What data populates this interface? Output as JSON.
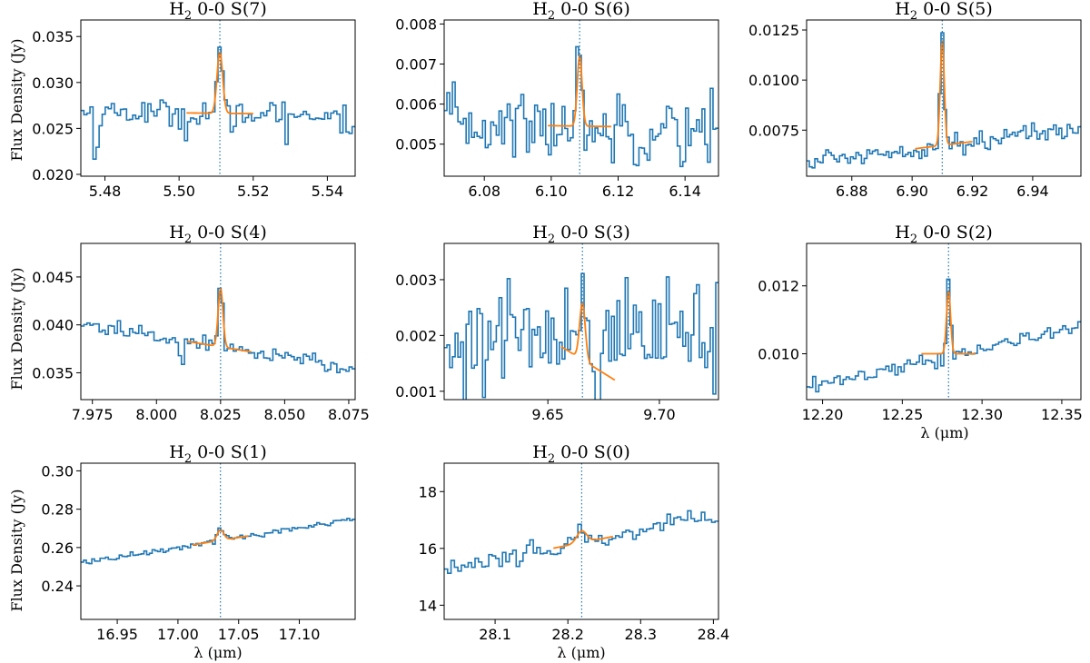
{
  "figure": {
    "ylabel": "Flux Density (Jy)",
    "xlabel": "λ (μm)",
    "title_prefix": "H",
    "title_subscript": "2",
    "colors": {
      "data": "#1f77b4",
      "fit": "#ff7f0e",
      "line_center": "#1f77b4"
    }
  },
  "chart_data": [
    {
      "type": "line",
      "title": "H2 0-0 S(7)",
      "line_label": "0-0 S(7)",
      "xlim": [
        5.4735,
        5.5475
      ],
      "ylim": [
        0.0198,
        0.0368
      ],
      "xticks": [
        5.48,
        5.5,
        5.52,
        5.54
      ],
      "xtick_labels": [
        "5.48",
        "5.50",
        "5.52",
        "5.54"
      ],
      "yticks": [
        0.02,
        0.025,
        0.03,
        0.035
      ],
      "ytick_labels": [
        "0.020",
        "0.025",
        "0.030",
        "0.035"
      ],
      "center": 5.511,
      "fwhm": 0.0018,
      "noise": 0.0007,
      "continuum": [
        [
          5.4735,
          0.0268
        ],
        [
          5.5475,
          0.0265
        ]
      ],
      "peak": 0.0072,
      "fit_range": [
        5.502,
        5.52
      ],
      "nbins": 90,
      "dips": [
        [
          5.4775,
          -0.004
        ],
        [
          5.502,
          -0.0035
        ],
        [
          5.5145,
          -0.0025
        ],
        [
          5.529,
          -0.0022
        ],
        [
          5.5465,
          -0.0022
        ]
      ]
    },
    {
      "type": "line",
      "title": "H2 0-0 S(6)",
      "line_label": "0-0 S(6)",
      "xlim": [
        6.068,
        6.15
      ],
      "ylim": [
        0.0042,
        0.0081
      ],
      "xticks": [
        6.08,
        6.1,
        6.12,
        6.14
      ],
      "xtick_labels": [
        "6.08",
        "6.10",
        "6.12",
        "6.14"
      ],
      "yticks": [
        0.005,
        0.006,
        0.007,
        0.008
      ],
      "ytick_labels": [
        "0.005",
        "0.006",
        "0.007",
        "0.008"
      ],
      "center": 6.1085,
      "fwhm": 0.0017,
      "noise": 0.00045,
      "continuum": [
        [
          6.068,
          0.0055
        ],
        [
          6.15,
          0.0054
        ]
      ],
      "peak": 0.0019,
      "fit_range": [
        6.099,
        6.118
      ],
      "nbins": 100,
      "dips": []
    },
    {
      "type": "line",
      "title": "H2 0-0 S(5)",
      "line_label": "0-0 S(5)",
      "xlim": [
        6.865,
        6.956
      ],
      "ylim": [
        0.0052,
        0.013
      ],
      "xticks": [
        6.88,
        6.9,
        6.92,
        6.94
      ],
      "xtick_labels": [
        "6.88",
        "6.90",
        "6.92",
        "6.94"
      ],
      "yticks": [
        0.0075,
        0.01,
        0.0125
      ],
      "ytick_labels": [
        "0.0075",
        "0.0100",
        "0.0125"
      ],
      "center": 6.91,
      "fwhm": 0.0016,
      "noise": 0.00025,
      "continuum": [
        [
          6.865,
          0.0059
        ],
        [
          6.956,
          0.0076
        ]
      ],
      "peak": 0.0056,
      "fit_range": [
        6.901,
        6.92
      ],
      "nbins": 100,
      "dips": []
    },
    {
      "type": "line",
      "title": "H2 0-0 S(4)",
      "line_label": "0-0 S(4)",
      "xlim": [
        7.9705,
        8.0775
      ],
      "ylim": [
        0.0322,
        0.0485
      ],
      "xticks": [
        7.975,
        8.0,
        8.025,
        8.05,
        8.075
      ],
      "xtick_labels": [
        "7.975",
        "8.000",
        "8.025",
        "8.050",
        "8.075"
      ],
      "yticks": [
        0.035,
        0.04,
        0.045
      ],
      "ytick_labels": [
        "0.035",
        "0.040",
        "0.045"
      ],
      "center": 8.025,
      "fwhm": 0.0022,
      "noise": 0.0004,
      "continuum": [
        [
          7.9705,
          0.0401
        ],
        [
          8.0775,
          0.0354
        ]
      ],
      "peak": 0.0066,
      "fit_range": [
        8.012,
        8.037
      ],
      "nbins": 90,
      "dips": [
        [
          8.01,
          -0.002
        ]
      ]
    },
    {
      "type": "line",
      "title": "H2 0-0 S(3)",
      "line_label": "0-0 S(3)",
      "xlim": [
        9.6035,
        9.7265
      ],
      "ylim": [
        0.00085,
        0.00365
      ],
      "xticks": [
        9.65,
        9.7
      ],
      "xtick_labels": [
        "9.65",
        "9.70"
      ],
      "yticks": [
        0.001,
        0.002,
        0.003
      ],
      "ytick_labels": [
        "0.001",
        "0.002",
        "0.003"
      ],
      "center": 9.6655,
      "fwhm": 0.003,
      "noise": 0.0005,
      "continuum": [
        [
          9.6035,
          0.002
        ],
        [
          9.7265,
          0.002
        ]
      ],
      "peak": 0.0011,
      "fit_range": [
        9.656,
        9.68
      ],
      "nbins": 100,
      "dips": [
        [
          9.6135,
          -0.0008
        ],
        [
          9.6725,
          -0.0008
        ]
      ],
      "fit_continuum": [
        [
          9.656,
          0.0018
        ],
        [
          9.68,
          0.0012
        ]
      ]
    },
    {
      "type": "line",
      "title": "H2 0-0 S(2)",
      "line_label": "0-0 S(2)",
      "xlim": [
        12.19,
        12.362
      ],
      "ylim": [
        0.00865,
        0.01325
      ],
      "xticks": [
        12.2,
        12.25,
        12.3,
        12.35
      ],
      "xtick_labels": [
        "12.20",
        "12.25",
        "12.30",
        "12.35"
      ],
      "yticks": [
        0.01,
        0.012
      ],
      "ytick_labels": [
        "0.010",
        "0.012"
      ],
      "center": 12.279,
      "fwhm": 0.003,
      "noise": 0.00012,
      "continuum": [
        [
          12.19,
          0.009
        ],
        [
          12.362,
          0.0108
        ]
      ],
      "peak": 0.002,
      "fit_range": [
        12.262,
        12.296
      ],
      "nbins": 90,
      "dips": [],
      "fit_continuum": [
        [
          12.262,
          0.01
        ],
        [
          12.296,
          0.01
        ]
      ]
    },
    {
      "type": "line",
      "title": "H2 0-0 S(1)",
      "line_label": "0-0 S(1)",
      "xlim": [
        16.92,
        17.146
      ],
      "ylim": [
        0.2225,
        0.304
      ],
      "xticks": [
        16.95,
        17.0,
        17.05,
        17.1
      ],
      "xtick_labels": [
        "16.95",
        "17.00",
        "17.05",
        "17.10"
      ],
      "yticks": [
        0.24,
        0.26,
        0.28,
        0.3
      ],
      "ytick_labels": [
        "0.24",
        "0.26",
        "0.28",
        "0.30"
      ],
      "center": 17.035,
      "fwhm": 0.0065,
      "noise": 0.0008,
      "continuum": [
        [
          16.92,
          0.252
        ],
        [
          17.146,
          0.275
        ]
      ],
      "peak": 0.006,
      "fit_range": [
        17.012,
        17.058
      ],
      "nbins": 100,
      "dips": []
    },
    {
      "type": "line",
      "title": "H2 0-0 S(0)",
      "line_label": "0-0 S(0)",
      "xlim": [
        28.03,
        28.407
      ],
      "ylim": [
        13.5,
        19.0
      ],
      "xticks": [
        28.1,
        28.2,
        28.3,
        28.4
      ],
      "xtick_labels": [
        "28.1",
        "28.2",
        "28.3",
        "28.4"
      ],
      "yticks": [
        14,
        16,
        18
      ],
      "ytick_labels": [
        "14",
        "16",
        "18"
      ],
      "center": 28.219,
      "fwhm": 0.016,
      "noise": 0.18,
      "continuum": [
        [
          28.03,
          15.25
        ],
        [
          28.407,
          17.15
        ]
      ],
      "peak": 0.45,
      "fit_range": [
        28.18,
        28.262
      ],
      "nbins": 80,
      "dips": []
    }
  ]
}
